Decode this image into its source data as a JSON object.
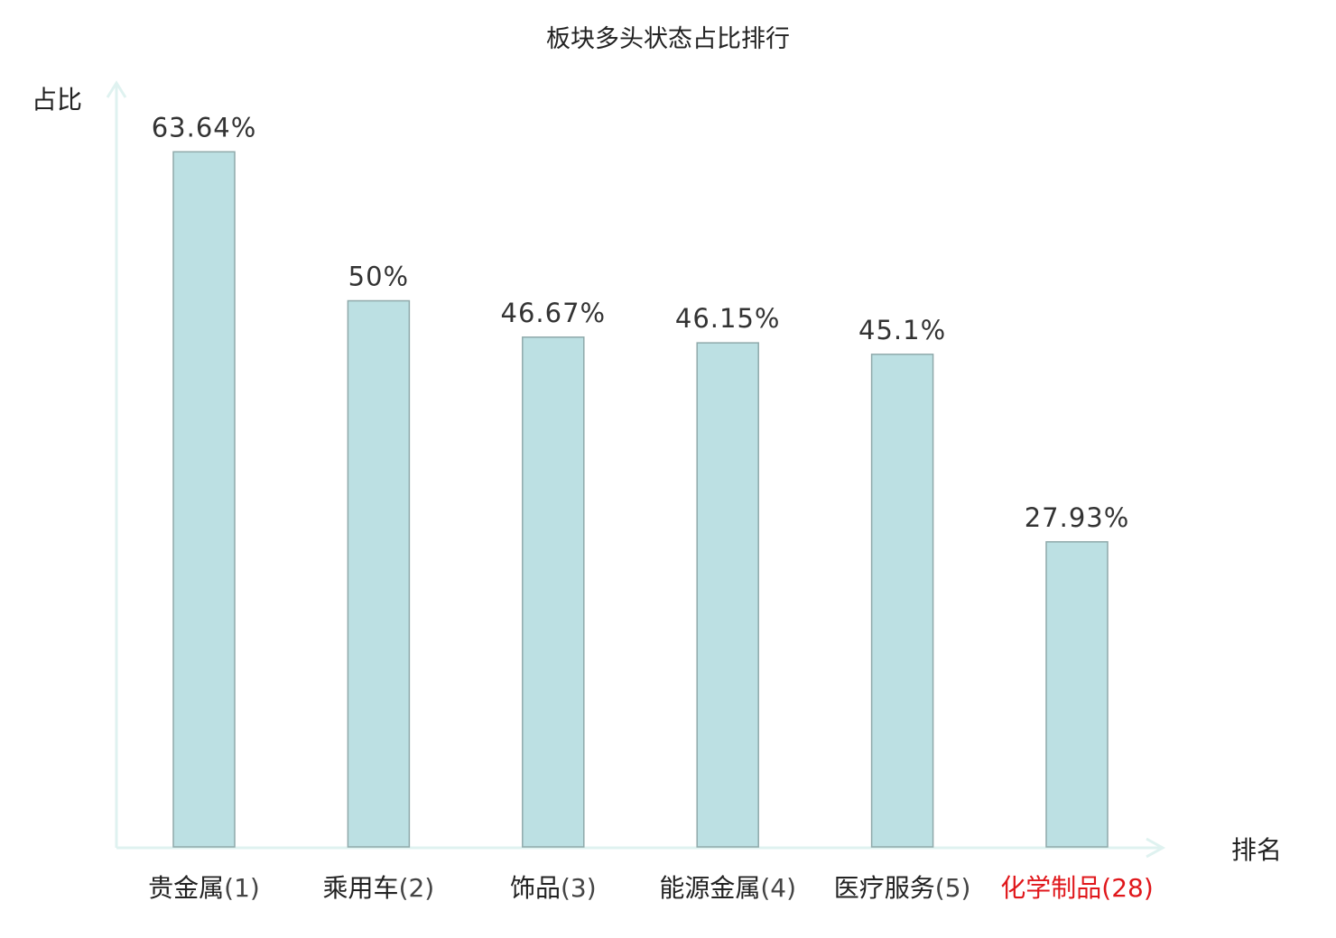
{
  "chart_data": {
    "type": "bar",
    "title": "板块多头状态占比排行",
    "xlabel": "排名",
    "ylabel": "占比",
    "categories": [
      "贵金属",
      "乘用车",
      "饰品",
      "能源金属",
      "医疗服务",
      "化学制品"
    ],
    "ranks": [
      "(1)",
      "(2)",
      "(3)",
      "(4)",
      "(5)",
      "(28)"
    ],
    "values": [
      63.64,
      50,
      46.67,
      46.15,
      45.1,
      27.93
    ],
    "data_labels": [
      "63.64%",
      "50%",
      "46.67%",
      "46.15%",
      "45.1%",
      "27.93%"
    ],
    "highlight_index": 5,
    "grid": false,
    "colors": {
      "bar_fill": "#bce0e3",
      "bar_stroke": "#8fa9aa",
      "axis": "#dff2f0",
      "text": "#333333",
      "highlight": "#e0171b"
    }
  }
}
